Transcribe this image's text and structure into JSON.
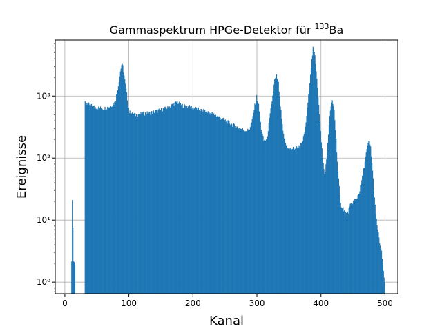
{
  "chart_data": {
    "type": "bar",
    "title": "Gammaspektrum HPGe-Detektor für ",
    "title_superscript": "133",
    "title_suffix": "Ba",
    "xlabel": "Kanal",
    "ylabel": "Ereignisse",
    "x_scale": "linear",
    "y_scale": "log",
    "xlim": [
      -15,
      520
    ],
    "ylim": [
      0.65,
      8000
    ],
    "xticks": [
      0,
      100,
      200,
      300,
      400,
      500
    ],
    "xtick_labels": [
      "0",
      "100",
      "200",
      "300",
      "400",
      "500"
    ],
    "yticks": [
      1,
      10,
      100,
      1000
    ],
    "ytick_labels": [
      "10⁰",
      "10¹",
      "10²",
      "10³"
    ],
    "grid": true,
    "bar_color": "#1f77b4",
    "bin_width": 1,
    "notes": "Histogram values are approximate, sampled from the visible envelope; in-between channels are interpolated",
    "points": [
      [
        10,
        2
      ],
      [
        11,
        20
      ],
      [
        12,
        8
      ],
      [
        13,
        2
      ],
      [
        14,
        2
      ],
      [
        15,
        2
      ],
      [
        16,
        0.5
      ],
      [
        30,
        0.5
      ],
      [
        31,
        800
      ],
      [
        35,
        750
      ],
      [
        40,
        700
      ],
      [
        50,
        650
      ],
      [
        60,
        630
      ],
      [
        70,
        680
      ],
      [
        78,
        800
      ],
      [
        83,
        1500
      ],
      [
        86,
        2500
      ],
      [
        88,
        3200
      ],
      [
        90,
        3000
      ],
      [
        93,
        1800
      ],
      [
        97,
        900
      ],
      [
        100,
        550
      ],
      [
        110,
        500
      ],
      [
        120,
        520
      ],
      [
        130,
        530
      ],
      [
        140,
        560
      ],
      [
        150,
        600
      ],
      [
        160,
        650
      ],
      [
        170,
        750
      ],
      [
        175,
        800
      ],
      [
        180,
        720
      ],
      [
        190,
        680
      ],
      [
        200,
        650
      ],
      [
        210,
        600
      ],
      [
        220,
        560
      ],
      [
        230,
        520
      ],
      [
        240,
        460
      ],
      [
        250,
        400
      ],
      [
        260,
        350
      ],
      [
        270,
        310
      ],
      [
        280,
        280
      ],
      [
        287,
        280
      ],
      [
        292,
        400
      ],
      [
        296,
        700
      ],
      [
        299,
        980
      ],
      [
        302,
        700
      ],
      [
        306,
        300
      ],
      [
        310,
        190
      ],
      [
        315,
        200
      ],
      [
        320,
        500
      ],
      [
        324,
        1000
      ],
      [
        327,
        1800
      ],
      [
        330,
        2100
      ],
      [
        333,
        1600
      ],
      [
        336,
        700
      ],
      [
        340,
        260
      ],
      [
        345,
        160
      ],
      [
        350,
        140
      ],
      [
        360,
        145
      ],
      [
        370,
        170
      ],
      [
        375,
        300
      ],
      [
        380,
        1000
      ],
      [
        384,
        3000
      ],
      [
        387,
        5800
      ],
      [
        390,
        4500
      ],
      [
        393,
        2000
      ],
      [
        397,
        500
      ],
      [
        402,
        100
      ],
      [
        405,
        55
      ],
      [
        408,
        90
      ],
      [
        411,
        250
      ],
      [
        414,
        600
      ],
      [
        417,
        820
      ],
      [
        420,
        600
      ],
      [
        423,
        200
      ],
      [
        426,
        60
      ],
      [
        430,
        18
      ],
      [
        435,
        15
      ],
      [
        440,
        12
      ],
      [
        445,
        17
      ],
      [
        450,
        20
      ],
      [
        455,
        22
      ],
      [
        460,
        30
      ],
      [
        465,
        55
      ],
      [
        470,
        120
      ],
      [
        474,
        190
      ],
      [
        477,
        150
      ],
      [
        481,
        45
      ],
      [
        485,
        12
      ],
      [
        490,
        5
      ],
      [
        494,
        3
      ],
      [
        497,
        1.5
      ],
      [
        499,
        1
      ]
    ]
  }
}
